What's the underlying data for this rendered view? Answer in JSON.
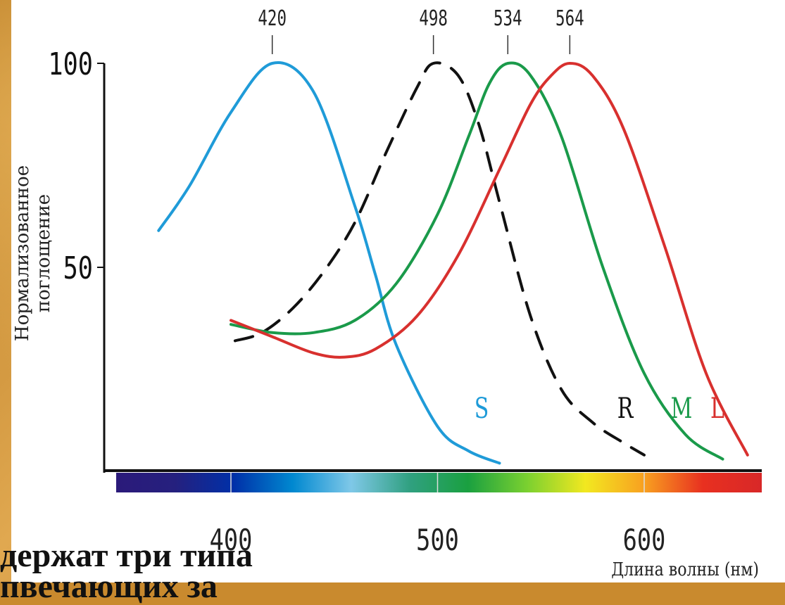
{
  "chart_data": {
    "type": "line",
    "xlabel": "Длина волны (нм)",
    "ylabel_lines": [
      "Нормализованное",
      "поглощение"
    ],
    "xlim": [
      350,
      700
    ],
    "ylim": [
      0,
      100
    ],
    "x_ticks": [
      400,
      500,
      600,
      700
    ],
    "y_ticks": [
      50,
      100
    ],
    "y_tick_labels": [
      "50",
      "100"
    ],
    "peak_labels": [
      "420",
      "498",
      "534",
      "564"
    ],
    "peaks": [
      420,
      498,
      534,
      564
    ],
    "series": [
      {
        "name": "S",
        "color": "#1f9bd8",
        "dash": false,
        "x": [
          365,
          380,
          400,
          420,
          440,
          460,
          470,
          480,
          500,
          515,
          530
        ],
        "y": [
          59,
          70,
          88,
          100,
          93,
          65,
          48,
          31,
          11,
          5,
          2
        ]
      },
      {
        "name": "R",
        "color": "#111111",
        "dash": true,
        "x": [
          402,
          415,
          430,
          445,
          460,
          475,
          490,
          498,
          510,
          520,
          530,
          545,
          560,
          575,
          590,
          600
        ],
        "y": [
          32,
          34,
          40,
          49,
          61,
          78,
          94,
          100,
          97,
          85,
          66,
          38,
          20,
          12,
          7,
          4
        ]
      },
      {
        "name": "M",
        "color": "#1a9a4a",
        "dash": false,
        "x": [
          400,
          420,
          440,
          460,
          480,
          500,
          515,
          525,
          534,
          545,
          560,
          580,
          600,
          620,
          638
        ],
        "y": [
          36,
          34,
          34,
          37,
          46,
          63,
          82,
          95,
          100,
          97,
          82,
          50,
          24,
          9,
          3
        ]
      },
      {
        "name": "L",
        "color": "#d8302e",
        "dash": false,
        "x": [
          400,
          420,
          440,
          455,
          470,
          490,
          510,
          530,
          545,
          555,
          564,
          575,
          590,
          610,
          630,
          650
        ],
        "y": [
          37,
          33,
          29,
          28,
          30,
          38,
          53,
          74,
          90,
          97,
          100,
          97,
          84,
          55,
          24,
          4
        ]
      }
    ],
    "legend_position": "inline-curve-labels",
    "grid": false,
    "spectrum_colors": [
      "#2b1a7a",
      "#25207e",
      "#0030a8",
      "#0088d0",
      "#7fc8e8",
      "#30a080",
      "#1aa040",
      "#7ad030",
      "#f2e820",
      "#f8a020",
      "#e83020",
      "#d82828"
    ]
  },
  "caption": "держат три типа\nпвечающих за"
}
